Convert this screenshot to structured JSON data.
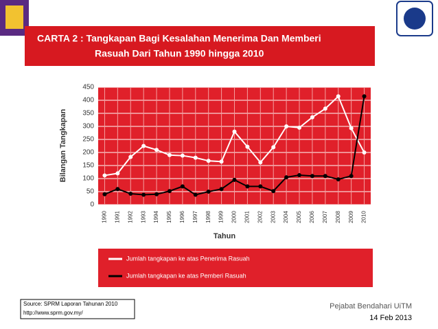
{
  "chart_data": {
    "type": "line",
    "title_lines": [
      "CARTA 2 : Tangkapan Bagi Kesalahan Menerima Dan Memberi",
      "Rasuah Dari Tahun 1990 hingga 2010"
    ],
    "ylabel": "Bilangan Tangkapan",
    "xlabel": "Tahun",
    "categories": [
      "1990",
      "1991",
      "1992",
      "1993",
      "1994",
      "1995",
      "1996",
      "1997",
      "1998",
      "1999",
      "2000",
      "2001",
      "2002",
      "2003",
      "2004",
      "2005",
      "2006",
      "2007",
      "2008",
      "2009",
      "2010"
    ],
    "series": [
      {
        "name": "Jumlah tangkapan ke atas Penerima Rasuah",
        "color": "#ffffff",
        "values": [
          112,
          120,
          183,
          225,
          210,
          190,
          188,
          180,
          168,
          165,
          280,
          222,
          162,
          220,
          300,
          295,
          335,
          368,
          415,
          293,
          200
        ]
      },
      {
        "name": "Jumlah tangkapan ke atas Pemberi Rasuah",
        "color": "#000000",
        "values": [
          40,
          60,
          42,
          38,
          40,
          52,
          70,
          38,
          50,
          60,
          95,
          70,
          70,
          52,
          105,
          113,
          110,
          110,
          97,
          110,
          415
        ]
      }
    ],
    "ylim": [
      0,
      450
    ],
    "yticks": [
      0,
      50,
      100,
      150,
      200,
      250,
      300,
      350,
      400,
      450
    ],
    "grid": true,
    "plot_color": "#e0202a"
  },
  "footer": {
    "source_lines": [
      "Source: SPRM Laporan Tahunan  2010",
      "http://www.sprm.gov.my/"
    ],
    "office": "Pejabat Bendahari UiTM",
    "date": "14 Feb 2013"
  }
}
